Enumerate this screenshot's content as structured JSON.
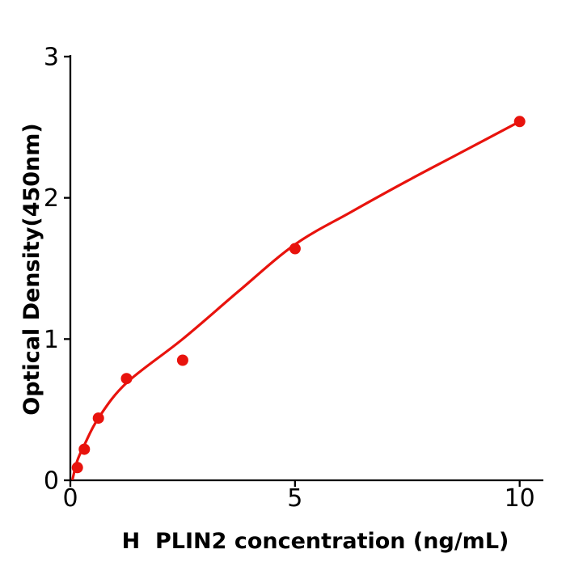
{
  "figure": {
    "background": "#ffffff"
  },
  "chart_data": {
    "type": "scatter",
    "title": "",
    "xlabel": "H  PLIN2 concentration (ng/mL)",
    "ylabel": "Optical Density(450nm)",
    "xlim": [
      0,
      10.55
    ],
    "ylim": [
      0,
      3.02
    ],
    "x_ticks": [
      0,
      5,
      10
    ],
    "y_ticks": [
      0,
      1,
      2,
      3
    ],
    "grid": false,
    "legend": "none",
    "axis_color": "#000000",
    "point_color": "#e8130d",
    "curve_color": "#e8130d",
    "points": [
      {
        "x": 0.156,
        "y": 0.09
      },
      {
        "x": 0.312,
        "y": 0.22
      },
      {
        "x": 0.625,
        "y": 0.44
      },
      {
        "x": 1.25,
        "y": 0.72
      },
      {
        "x": 2.5,
        "y": 0.85
      },
      {
        "x": 5,
        "y": 1.64
      },
      {
        "x": 10,
        "y": 2.54
      }
    ],
    "fit_curve": [
      {
        "x": 0.05,
        "y": 0.01
      },
      {
        "x": 0.156,
        "y": 0.14
      },
      {
        "x": 0.312,
        "y": 0.25
      },
      {
        "x": 0.625,
        "y": 0.44
      },
      {
        "x": 1.25,
        "y": 0.69
      },
      {
        "x": 2.5,
        "y": 1.0
      },
      {
        "x": 3.75,
        "y": 1.34
      },
      {
        "x": 5,
        "y": 1.67
      },
      {
        "x": 6.25,
        "y": 1.9
      },
      {
        "x": 7.5,
        "y": 2.12
      },
      {
        "x": 8.75,
        "y": 2.33
      },
      {
        "x": 10,
        "y": 2.54
      }
    ]
  }
}
